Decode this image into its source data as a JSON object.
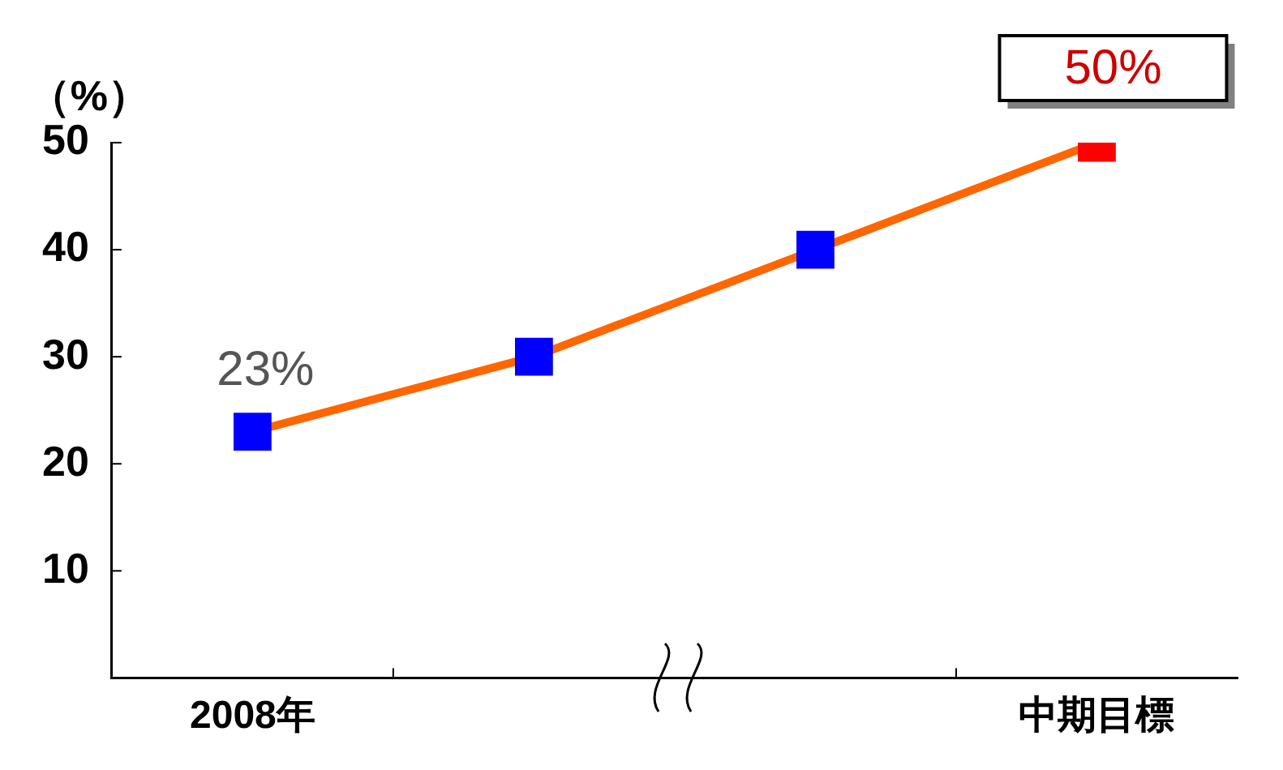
{
  "chart_data": {
    "type": "line",
    "ylabel": "（%）",
    "categories": [
      "2008年",
      null,
      null,
      "中期目標"
    ],
    "series": [
      {
        "color": "#ff6600",
        "colors": [
          "#0000ff",
          "#0000ff",
          "#0000ff",
          "#ff0000"
        ],
        "values": [
          23,
          30,
          40,
          50
        ],
        "value_labels": [
          "23%",
          null,
          null,
          "50%"
        ]
      }
    ],
    "ylim": [
      0,
      50
    ],
    "yticks": [
      10,
      20,
      30,
      40,
      50
    ],
    "grid": false,
    "legend": false,
    "marker": "square",
    "line_style": "solid"
  }
}
